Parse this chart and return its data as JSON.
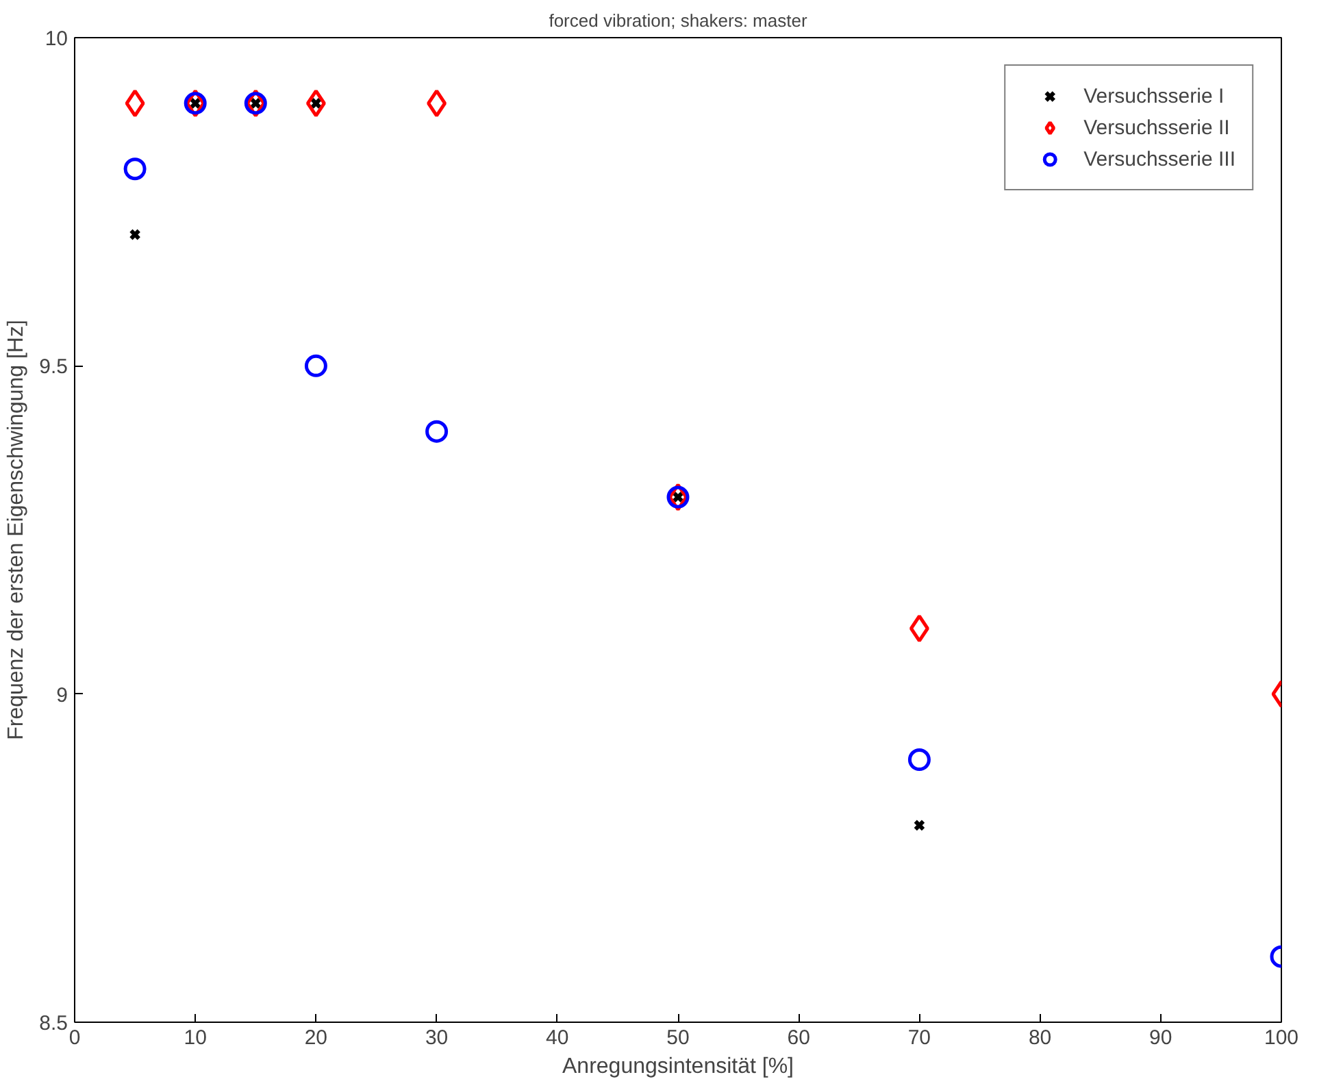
{
  "chart_data": {
    "type": "scatter",
    "title": "forced vibration; shakers: master",
    "xlabel": "Anregungsintensität [%]",
    "ylabel": "Frequenz der ersten Eigenschwingung [Hz]",
    "xlim": [
      0,
      100
    ],
    "xticks": [
      0,
      10,
      20,
      30,
      40,
      50,
      60,
      70,
      80,
      90,
      100
    ],
    "ylim": [
      8.5,
      10
    ],
    "yticks": [
      8.5,
      9,
      9.5,
      10
    ],
    "grid": false,
    "legend": "top right",
    "series": [
      {
        "name": "Versuchsserie I",
        "color": "#000000",
        "marker": "cross",
        "x": [
          5,
          10,
          15,
          20,
          50,
          70
        ],
        "values": [
          9.7,
          9.9,
          9.9,
          9.9,
          9.3,
          8.8
        ]
      },
      {
        "name": "Versuchsserie II",
        "color": "#ff0000",
        "marker": "diamond",
        "x": [
          5,
          10,
          15,
          20,
          30,
          50,
          70,
          100
        ],
        "values": [
          9.9,
          9.9,
          9.9,
          9.9,
          9.9,
          9.3,
          9.1,
          9.0
        ]
      },
      {
        "name": "Versuchsserie III",
        "color": "#0000ff",
        "marker": "circle",
        "x": [
          5,
          10,
          15,
          20,
          30,
          50,
          70,
          100
        ],
        "values": [
          9.8,
          9.9,
          9.9,
          9.5,
          9.4,
          9.3,
          8.9,
          8.6
        ]
      }
    ]
  }
}
